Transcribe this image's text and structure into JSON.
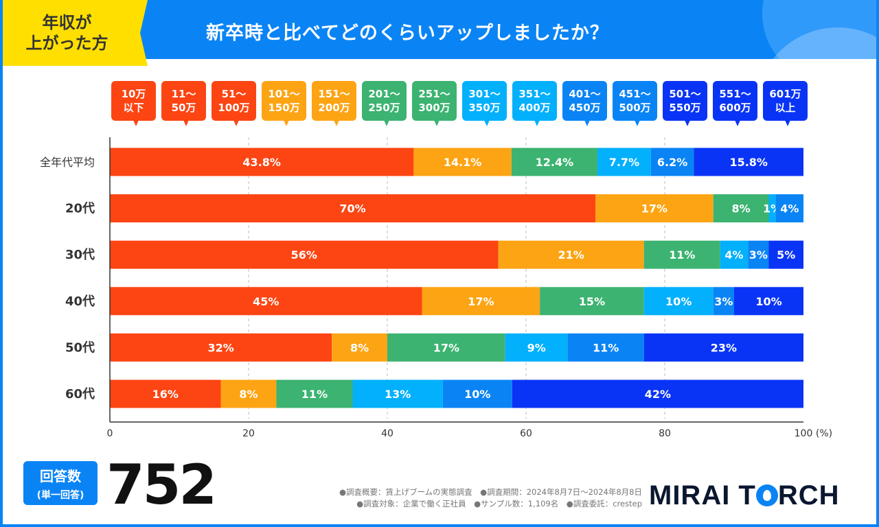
{
  "header": {
    "tag": "年収が\n上がった方",
    "title": "新卒時と比べてどのくらいアップしましたか？"
  },
  "legend": [
    {
      "label": "10万\n以下",
      "color": "#fc4513"
    },
    {
      "label": "11～\n50万",
      "color": "#fc4513"
    },
    {
      "label": "51～\n100万",
      "color": "#fc4513"
    },
    {
      "label": "101～\n150万",
      "color": "#fda414"
    },
    {
      "label": "151～\n200万",
      "color": "#fda414"
    },
    {
      "label": "201～\n250万",
      "color": "#3cb371"
    },
    {
      "label": "251～\n300万",
      "color": "#3cb371"
    },
    {
      "label": "301～\n350万",
      "color": "#03b0fc"
    },
    {
      "label": "351～\n400万",
      "color": "#03b0fc"
    },
    {
      "label": "401～\n450万",
      "color": "#0a84f5"
    },
    {
      "label": "451～\n500万",
      "color": "#0a84f5"
    },
    {
      "label": "501～\n550万",
      "color": "#0a34f5"
    },
    {
      "label": "551～\n600万",
      "color": "#0a34f5"
    },
    {
      "label": "601万\n以上",
      "color": "#0a34f5"
    }
  ],
  "chart_data": {
    "type": "bar",
    "orientation": "horizontal",
    "stacked": true,
    "categories": [
      "全年代平均",
      "20代",
      "30代",
      "40代",
      "50代",
      "60代"
    ],
    "series": [
      {
        "color": "#fc4513",
        "values": [
          43.8,
          70,
          56,
          45,
          32,
          16
        ],
        "labels": [
          "43.8%",
          "70%",
          "56%",
          "45%",
          "32%",
          "16%"
        ]
      },
      {
        "color": "#fda414",
        "values": [
          14.1,
          17,
          21,
          17,
          8,
          8
        ],
        "labels": [
          "14.1%",
          "17%",
          "21%",
          "17%",
          "8%",
          "8%"
        ]
      },
      {
        "color": "#3cb371",
        "values": [
          12.4,
          8,
          11,
          15,
          17,
          11
        ],
        "labels": [
          "12.4%",
          "8%",
          "11%",
          "15%",
          "17%",
          "11%"
        ]
      },
      {
        "color": "#03b0fc",
        "values": [
          7.7,
          1,
          4,
          10,
          9,
          13
        ],
        "labels": [
          "7.7%",
          "1%",
          "4%",
          "10%",
          "9%",
          "13%"
        ]
      },
      {
        "color": "#0a84f5",
        "values": [
          6.2,
          4,
          3,
          3,
          11,
          10
        ],
        "labels": [
          "6.2%",
          "4%",
          "3%",
          "3%",
          "11%",
          "10%"
        ]
      },
      {
        "color": "#0a34f5",
        "values": [
          15.8,
          0,
          5,
          10,
          23,
          42
        ],
        "labels": [
          "15.8%",
          "",
          "5%",
          "10%",
          "23%",
          "42%"
        ]
      }
    ],
    "xlim": [
      0,
      100
    ],
    "xticks": [
      "0",
      "20",
      "40",
      "60",
      "80",
      "100"
    ],
    "xunit": "(%)",
    "grid": "dashed vertical"
  },
  "footer": {
    "badge_main": "回答数",
    "badge_sub": "(単一回答)",
    "count": "752",
    "notes": [
      "●調査概要：賃上げブームの実態調査　●調査期間：2024年8月7日～2024年8月8日",
      "●調査対象：企業で働く正社員　●サンプル数：1,109名　●調査委託：crestep"
    ],
    "logo": "MIRAI TORCH"
  }
}
